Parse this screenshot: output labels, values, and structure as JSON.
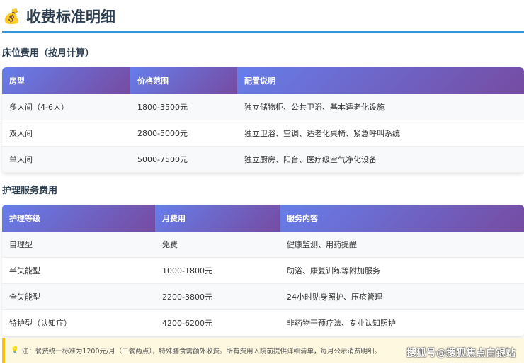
{
  "title": "收费标准明细",
  "title_icon": "money-bag-icon",
  "bed": {
    "heading": "床位费用（按月计算）",
    "headers": [
      "房型",
      "价格范围",
      "配置说明"
    ],
    "rows": [
      [
        "多人间（4-6人）",
        "1800-3500元",
        "独立储物柜、公共卫浴、基本适老化设施"
      ],
      [
        "双人间",
        "2800-5000元",
        "独立卫浴、空调、适老化桌椅、紧急呼叫系统"
      ],
      [
        "单人间",
        "5000-7500元",
        "独立厨房、阳台、医疗级空气净化设备"
      ]
    ]
  },
  "care": {
    "heading": "护理服务费用",
    "headers": [
      "护理等级",
      "月费用",
      "服务内容"
    ],
    "rows": [
      [
        "自理型",
        "免费",
        "健康监测、用药提醒"
      ],
      [
        "半失能型",
        "1000-1800元",
        "助浴、康复训练等附加服务"
      ],
      [
        "全失能型",
        "2200-3800元",
        "24小时贴身照护、压疮管理"
      ],
      [
        "特护型（认知症）",
        "4200-6200元",
        "非药物干预疗法、专业认知照护"
      ]
    ]
  },
  "note": {
    "icon": "lightbulb-icon",
    "text": "注：餐费统一标准为1200元/月（三餐两点），特殊膳食需额外收费。所有费用入院前提供详细清单，每月公示消费明细。"
  },
  "watermark": "搜狐号@搜狐焦点白银站",
  "colors": {
    "accent": "#3498db",
    "header_gradient": [
      "#667eea",
      "#764ba2"
    ],
    "note_border": "#ffc107"
  }
}
